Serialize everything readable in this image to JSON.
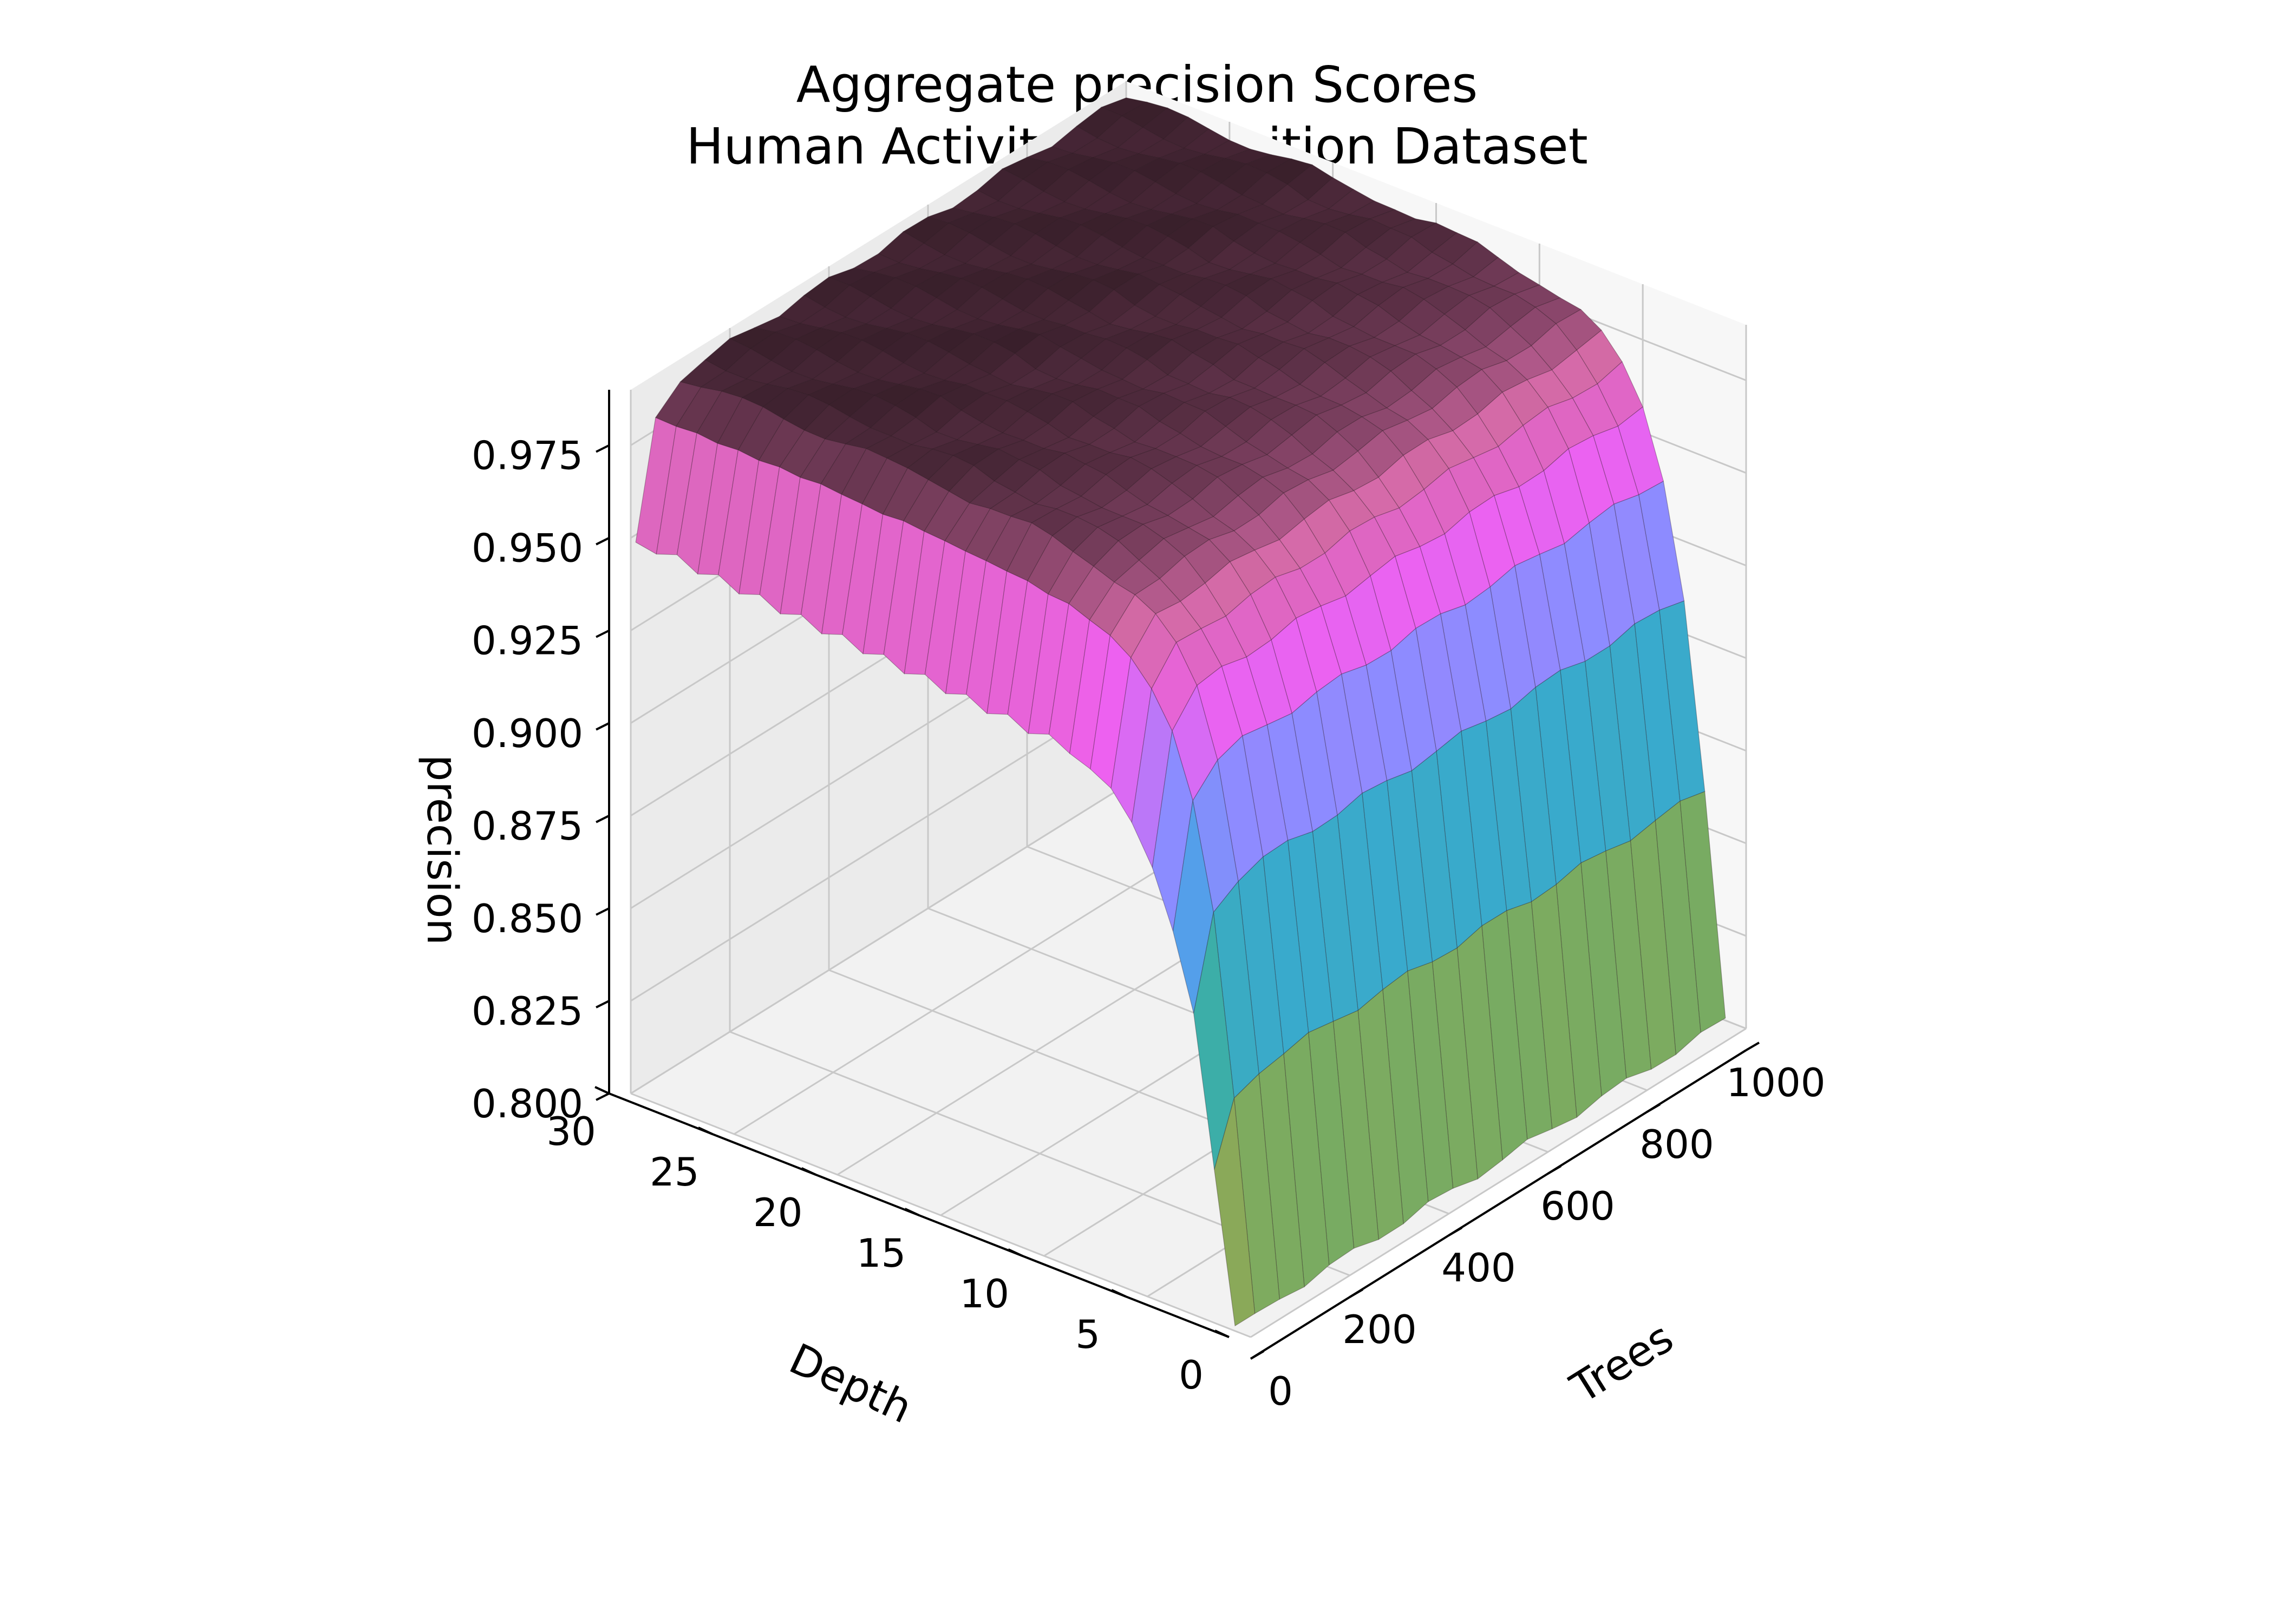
{
  "chart_data": {
    "type": "surface",
    "title": "Aggregate precision Scores",
    "subtitle": "Human Activity Recognition Dataset",
    "xlabel": "Trees",
    "ylabel": "Depth",
    "zlabel": "precision",
    "x_ticks": [
      "0",
      "200",
      "400",
      "600",
      "800",
      "1000"
    ],
    "y_ticks": [
      "0",
      "5",
      "10",
      "15",
      "20",
      "25",
      "30"
    ],
    "z_ticks": [
      "0.800",
      "0.825",
      "0.850",
      "0.875",
      "0.900",
      "0.925",
      "0.950",
      "0.975"
    ],
    "xlim": [
      0,
      1000
    ],
    "ylim": [
      0,
      30
    ],
    "zlim": [
      0.8,
      0.99
    ],
    "grid": true,
    "colormap": [
      "#c8a23a",
      "#3fb27f",
      "#38a8e0",
      "#8c8cff",
      "#f060f0",
      "#d46aa6",
      "#2e1a22"
    ],
    "trees": [
      10,
      50,
      100,
      150,
      200,
      250,
      300,
      350,
      400,
      450,
      500,
      550,
      600,
      650,
      700,
      750,
      800,
      850,
      900,
      950,
      1000
    ],
    "depths": [
      1,
      2,
      3,
      4,
      5,
      6,
      7,
      8,
      9,
      10,
      11,
      12,
      13,
      14,
      15,
      16,
      17,
      18,
      19,
      20,
      21,
      22,
      23,
      24,
      25,
      26,
      27,
      28,
      29,
      30
    ],
    "depth_curve": [
      0.8,
      0.86,
      0.91,
      0.94,
      0.957,
      0.966,
      0.972,
      0.976,
      0.978,
      0.98,
      0.981,
      0.982,
      0.983,
      0.983,
      0.984,
      0.984,
      0.985,
      0.985,
      0.985,
      0.985,
      0.986,
      0.986,
      0.986,
      0.986,
      0.986,
      0.986,
      0.986,
      0.986,
      0.986,
      0.986
    ],
    "low_tree_precision_by_depth": [
      0.8,
      0.84,
      0.88,
      0.9,
      0.915,
      0.925,
      0.932,
      0.935,
      0.937,
      0.94,
      0.938,
      0.941,
      0.939,
      0.942,
      0.94,
      0.943,
      0.941,
      0.944,
      0.942,
      0.945,
      0.943,
      0.946,
      0.944,
      0.947,
      0.945,
      0.948,
      0.946,
      0.949,
      0.947,
      0.948
    ]
  }
}
